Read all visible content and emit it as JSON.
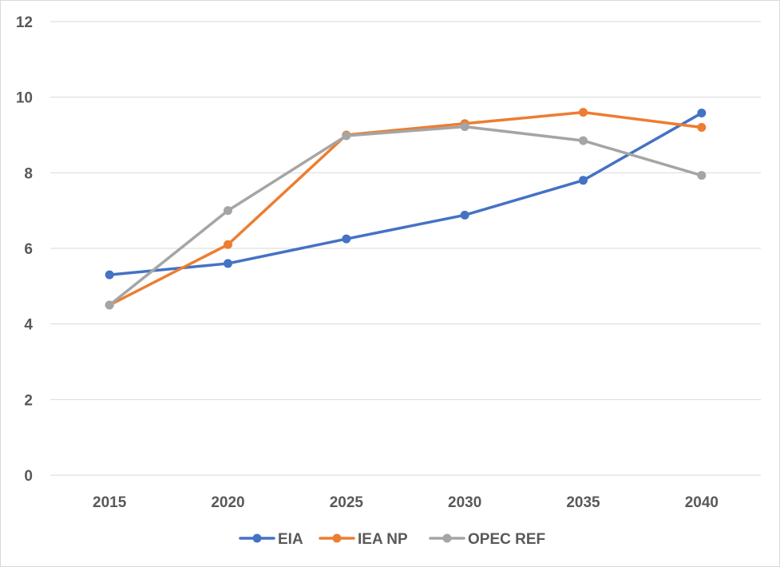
{
  "chart_data": {
    "type": "line",
    "categories": [
      "2015",
      "2020",
      "2025",
      "2030",
      "2035",
      "2040"
    ],
    "ylim": [
      0,
      12
    ],
    "yticks": [
      0,
      2,
      4,
      6,
      8,
      10,
      12
    ],
    "grid": "horizontal",
    "legend_position": "bottom",
    "series": [
      {
        "name": "EIA",
        "color": "#4472C4",
        "values": [
          5.3,
          5.6,
          6.25,
          6.88,
          7.8,
          9.58
        ]
      },
      {
        "name": "IEA NP",
        "color": "#ED7D31",
        "values": [
          4.5,
          6.1,
          9.0,
          9.3,
          9.6,
          9.2
        ]
      },
      {
        "name": "OPEC REF",
        "color": "#A5A5A5",
        "values": [
          4.5,
          7.0,
          8.98,
          9.22,
          8.85,
          7.93
        ]
      }
    ]
  }
}
